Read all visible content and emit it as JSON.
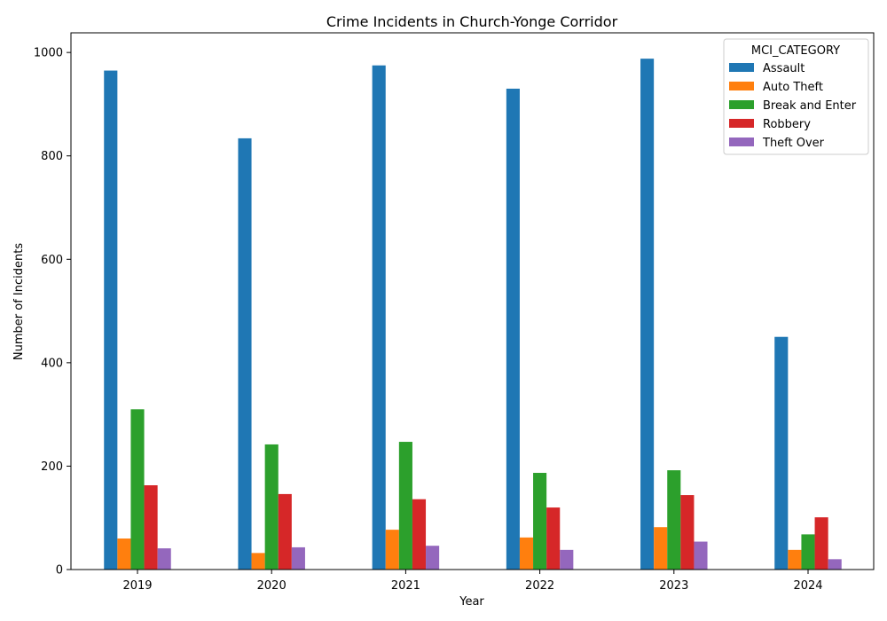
{
  "chart_data": {
    "type": "bar",
    "title": "Crime Incidents in Church-Yonge Corridor",
    "xlabel": "Year",
    "ylabel": "Number of Incidents",
    "categories": [
      "2019",
      "2020",
      "2021",
      "2022",
      "2023",
      "2024"
    ],
    "ylim": [
      0,
      1038
    ],
    "yticks": [
      0,
      200,
      400,
      600,
      800,
      1000
    ],
    "legend_title": "MCI_CATEGORY",
    "legend_position": "top-right",
    "grid": false,
    "series": [
      {
        "name": "Assault",
        "color": "#1f77b4",
        "values": [
          965,
          834,
          975,
          930,
          988,
          450
        ]
      },
      {
        "name": "Auto Theft",
        "color": "#ff7f0e",
        "values": [
          60,
          32,
          77,
          62,
          82,
          38
        ]
      },
      {
        "name": "Break and Enter",
        "color": "#2ca02c",
        "values": [
          310,
          242,
          247,
          187,
          192,
          68
        ]
      },
      {
        "name": "Robbery",
        "color": "#d62728",
        "values": [
          163,
          146,
          136,
          120,
          144,
          101
        ]
      },
      {
        "name": "Theft Over",
        "color": "#9467bd",
        "values": [
          41,
          43,
          46,
          38,
          54,
          20
        ]
      }
    ]
  }
}
